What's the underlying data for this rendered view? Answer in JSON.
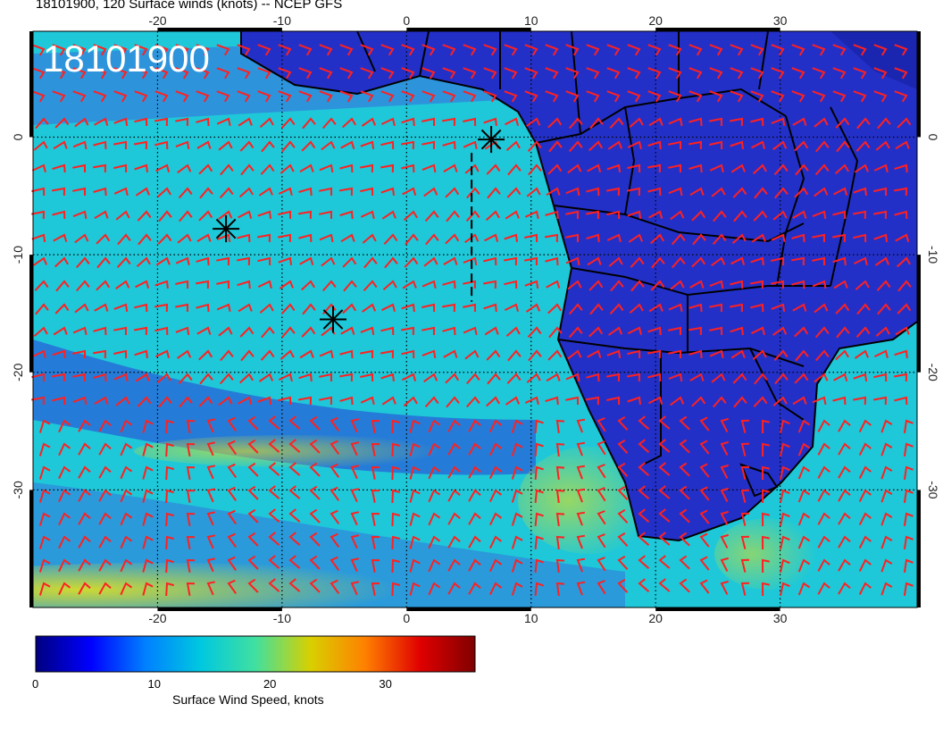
{
  "title": "18101900, 120 Surface winds (knots) -- NCEP GFS",
  "stamp": "18101900",
  "colorbar": {
    "label": "Surface Wind Speed, knots",
    "ticks": [
      "0",
      "10",
      "20",
      "30"
    ],
    "range": [
      0,
      38
    ],
    "colors": [
      "#000080",
      "#0000ff",
      "#0080ff",
      "#00c8e0",
      "#40e0a0",
      "#d8d000",
      "#ff8000",
      "#e00000",
      "#800000"
    ]
  },
  "map": {
    "lon_range": [
      -30,
      41
    ],
    "lat_range": [
      -40,
      9
    ],
    "lon_ticks": [
      "-20",
      "-10",
      "0",
      "10",
      "20",
      "30"
    ],
    "lat_ticks": [
      "0",
      "-10",
      "-20",
      "-30"
    ],
    "ocean_color": "#1ec8d8",
    "land_color": "#2330c8",
    "barb_color": "#ff2020",
    "grid": "dotted"
  },
  "markers": [
    {
      "name": "star-marker-1",
      "lon": 6.8,
      "lat": -0.2
    },
    {
      "name": "star-marker-2",
      "lon": -14.5,
      "lat": -7.8
    },
    {
      "name": "star-marker-3",
      "lon": -5.9,
      "lat": -15.5
    }
  ]
}
